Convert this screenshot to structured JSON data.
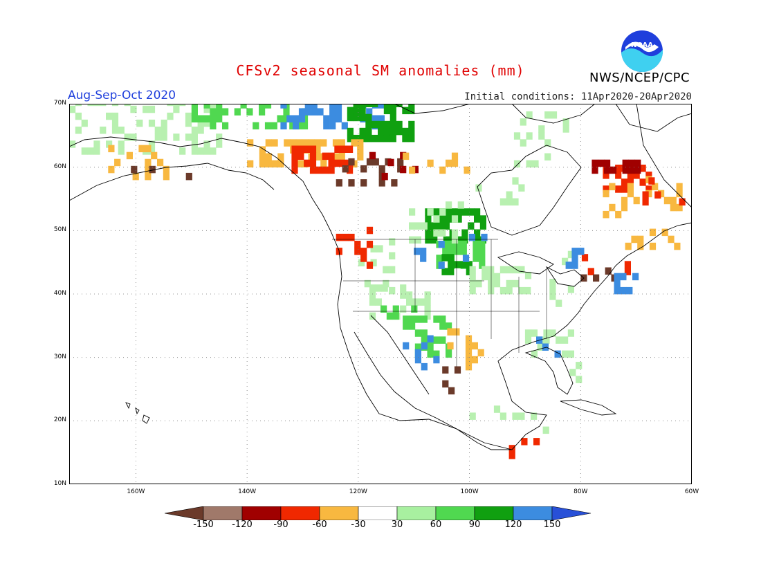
{
  "title": "CFSv2 seasonal SM anomalies (mm)",
  "season": "Aug-Sep-Oct 2020",
  "initial_conditions": "Initial conditions: 11Apr2020-20Apr2020",
  "agency": "NWS/NCEP/CPC",
  "logo_text": "NOAA",
  "map": {
    "lon_range": [
      -172,
      -60
    ],
    "lat_range": [
      10,
      70
    ],
    "lat_ticks": [
      {
        "value": 70,
        "label": "70N"
      },
      {
        "value": 60,
        "label": "60N"
      },
      {
        "value": 50,
        "label": "50N"
      },
      {
        "value": 40,
        "label": "40N"
      },
      {
        "value": 30,
        "label": "30N"
      },
      {
        "value": 20,
        "label": "20N"
      },
      {
        "value": 10,
        "label": "10N"
      }
    ],
    "lon_ticks": [
      {
        "value": -160,
        "label": "160W"
      },
      {
        "value": -140,
        "label": "140W"
      },
      {
        "value": -120,
        "label": "120W"
      },
      {
        "value": -100,
        "label": "100W"
      },
      {
        "value": -80,
        "label": "80W"
      },
      {
        "value": -60,
        "label": "60W"
      }
    ],
    "grid": true
  },
  "colorbar": {
    "labels": [
      "-150",
      "-120",
      "-90",
      "-60",
      "-30",
      "30",
      "60",
      "90",
      "120",
      "150"
    ],
    "colors": [
      "#6b3a2a",
      "#a0796a",
      "#a00000",
      "#f02800",
      "#f8b840",
      "#ffffff",
      "#a8f0a0",
      "#50d850",
      "#10a010",
      "#3c8ce0",
      "#2850d8"
    ]
  },
  "anomaly_colors": {
    "dark_brown": "#6b3a2a",
    "light_brown": "#a0796a",
    "dark_red": "#a00000",
    "red": "#f02800",
    "orange": "#f8b840",
    "light_green": "#b8f0b0",
    "green": "#50d850",
    "dark_green": "#10a010",
    "blue": "#3c8ce0"
  }
}
